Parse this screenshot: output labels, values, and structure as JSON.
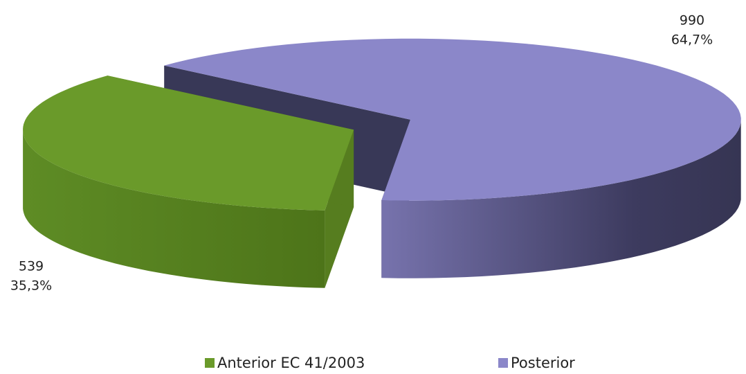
{
  "chart_data": {
    "type": "pie3d",
    "categories": [
      "Anterior EC 41/2003",
      "Posterior"
    ],
    "values": [
      539,
      990
    ],
    "percentages": [
      35.3,
      64.7
    ],
    "percentage_labels": [
      "35,3%",
      "64,7%"
    ],
    "colors": [
      "#6a9a2a",
      "#8b87c9"
    ],
    "legend": "bottom"
  }
}
